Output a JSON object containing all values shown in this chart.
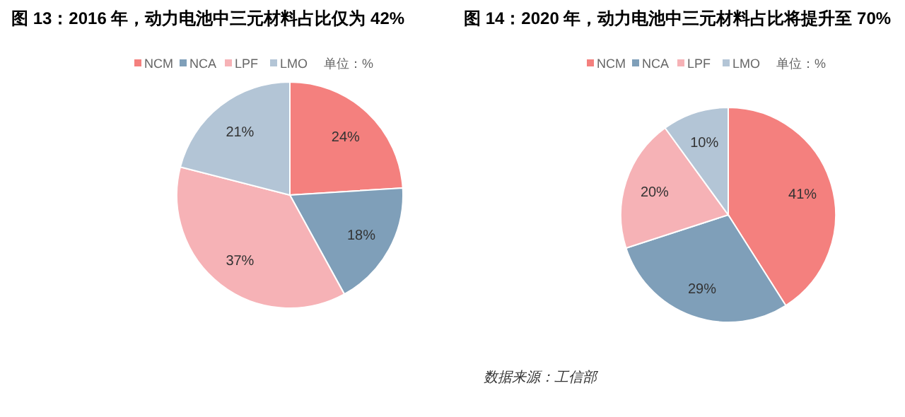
{
  "chart_data": [
    {
      "type": "pie",
      "title": "图 13：2016 年，动力电池中三元材料占比仅为 42%",
      "categories": [
        "NCM",
        "NCA",
        "LPF",
        "LMO"
      ],
      "values": [
        24,
        18,
        37,
        21
      ],
      "colors": [
        "#f4807e",
        "#7f9fb9",
        "#f6b2b6",
        "#b3c5d6"
      ],
      "value_labels": [
        "24%",
        "18%",
        "37%",
        "21%"
      ],
      "legend": "top",
      "annotations": [
        "单位：%"
      ]
    },
    {
      "type": "pie",
      "title": "图 14：2020 年，动力电池中三元材料占比将提升至 70%",
      "categories": [
        "NCM",
        "NCA",
        "LPF",
        "LMO"
      ],
      "values": [
        41,
        29,
        20,
        10
      ],
      "colors": [
        "#f4807e",
        "#7f9fb9",
        "#f6b2b6",
        "#b3c5d6"
      ],
      "value_labels": [
        "41%",
        "29%",
        "20%",
        "10%"
      ],
      "legend": "top",
      "annotations": [
        "单位：%",
        "数据来源：工信部"
      ]
    }
  ]
}
